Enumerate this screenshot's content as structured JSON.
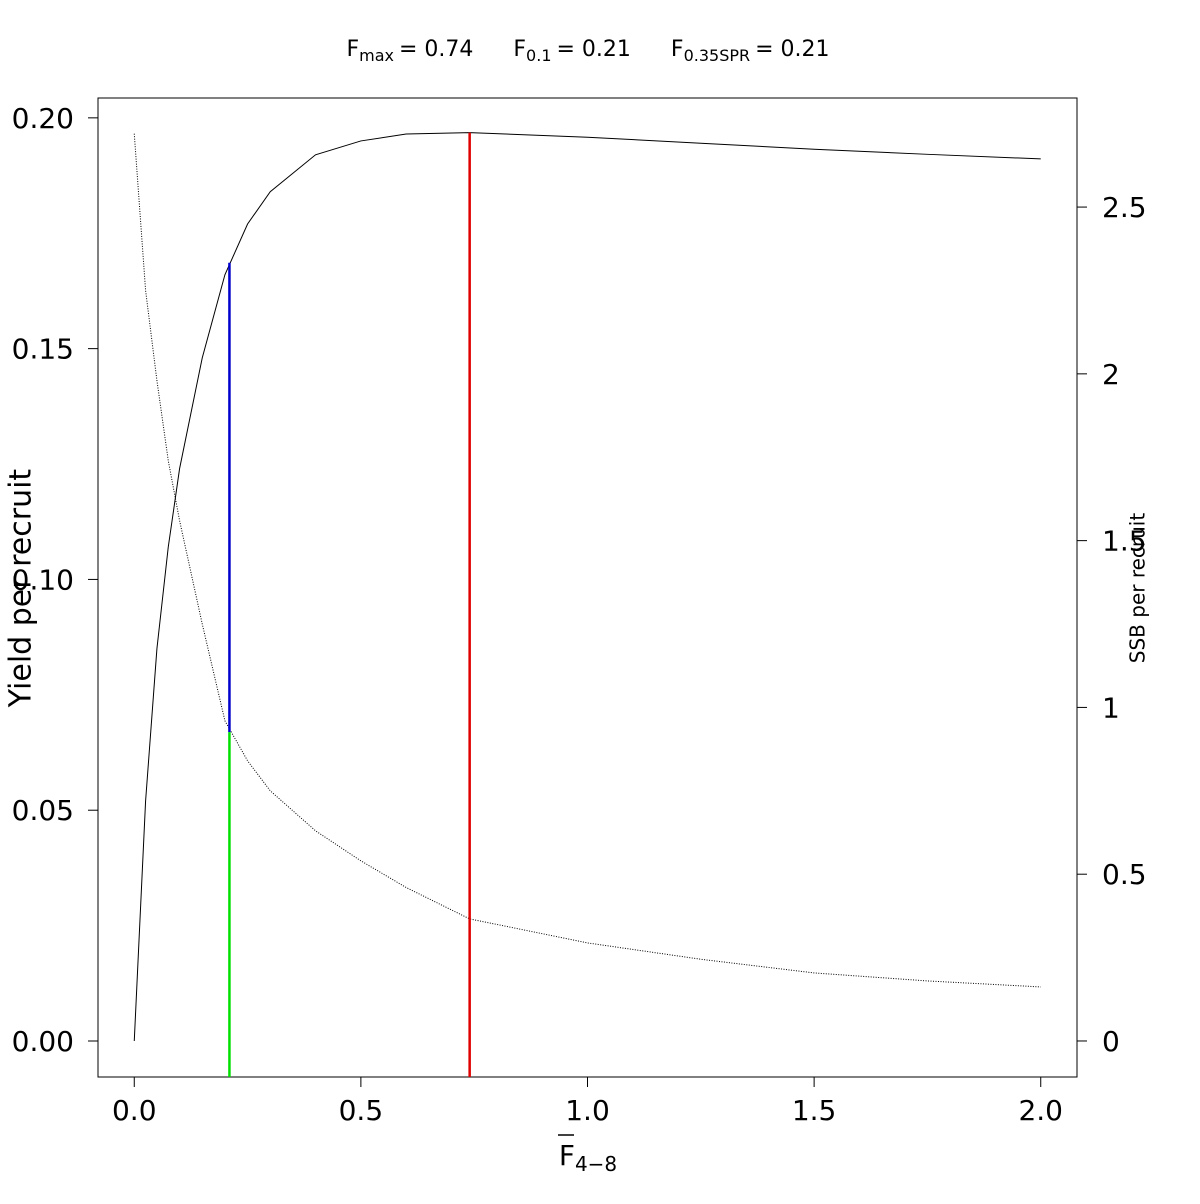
{
  "chart_data": {
    "type": "line",
    "title_parts": [
      {
        "symbol": "F",
        "subscript": "max",
        "text": "= 0.74"
      },
      {
        "symbol": "F",
        "subscript": "0.1",
        "text": "= 0.21"
      },
      {
        "symbol": "F",
        "subscript": "0.35SPR",
        "text": "= 0.21"
      }
    ],
    "x_label": {
      "symbol": "F",
      "subscript": "4−8"
    },
    "y_label": "Yield per recruit",
    "y2_label": "SSB per recruit",
    "x": [
      0,
      0.025,
      0.05,
      0.075,
      0.1,
      0.15,
      0.2,
      0.25,
      0.3,
      0.4,
      0.5,
      0.6,
      0.74,
      1.0,
      1.25,
      1.5,
      1.75,
      2.0
    ],
    "series": [
      {
        "name": "Yield per recruit",
        "color": "#000000",
        "values": [
          0,
          0.052,
          0.085,
          0.107,
          0.124,
          0.148,
          0.166,
          0.177,
          0.184,
          0.192,
          0.195,
          0.1965,
          0.1968,
          0.1958,
          0.1945,
          0.1932,
          0.1921,
          0.1911
        ]
      },
      {
        "name": "SSB per recruit",
        "color": "#000000",
        "axis": "y2",
        "dash": "dotted",
        "values": [
          2.72,
          2.25,
          1.98,
          1.74,
          1.56,
          1.25,
          0.96,
          0.84,
          0.75,
          0.63,
          0.54,
          0.46,
          0.366,
          0.294,
          0.245,
          0.204,
          0.18,
          0.162
        ]
      }
    ],
    "reference_lines": [
      {
        "x": 0.74,
        "yield_top": 0.1968,
        "color": "#e00000"
      },
      {
        "x": 0.21,
        "yield_top": 0.1686,
        "ssb_bottom": 0.926,
        "color": "#0000cc"
      },
      {
        "x": 0.21,
        "ssb_top": 0.926,
        "color": "#00e000"
      }
    ],
    "xlim": [
      -0.08,
      2.08
    ],
    "ylim": [
      -0.0078,
      0.2043
    ],
    "y2lim": [
      -0.108,
      2.827
    ],
    "xticks": [
      {
        "value": 0,
        "label": "0.0"
      },
      0.5,
      {
        "value": 1,
        "label": "1.0"
      },
      1.5,
      {
        "value": 2,
        "label": "2.0"
      }
    ],
    "yticks": [
      {
        "value": 0,
        "label": "0.00"
      },
      {
        "value": 0.05,
        "label": "0.05"
      },
      {
        "value": 0.1,
        "label": "0.10"
      },
      {
        "value": 0.15,
        "label": "0.15"
      },
      {
        "value": 0.2,
        "label": "0.20"
      }
    ],
    "y2ticks": [
      0,
      0.5,
      1,
      1.5,
      2,
      2.5
    ],
    "grid": false
  }
}
